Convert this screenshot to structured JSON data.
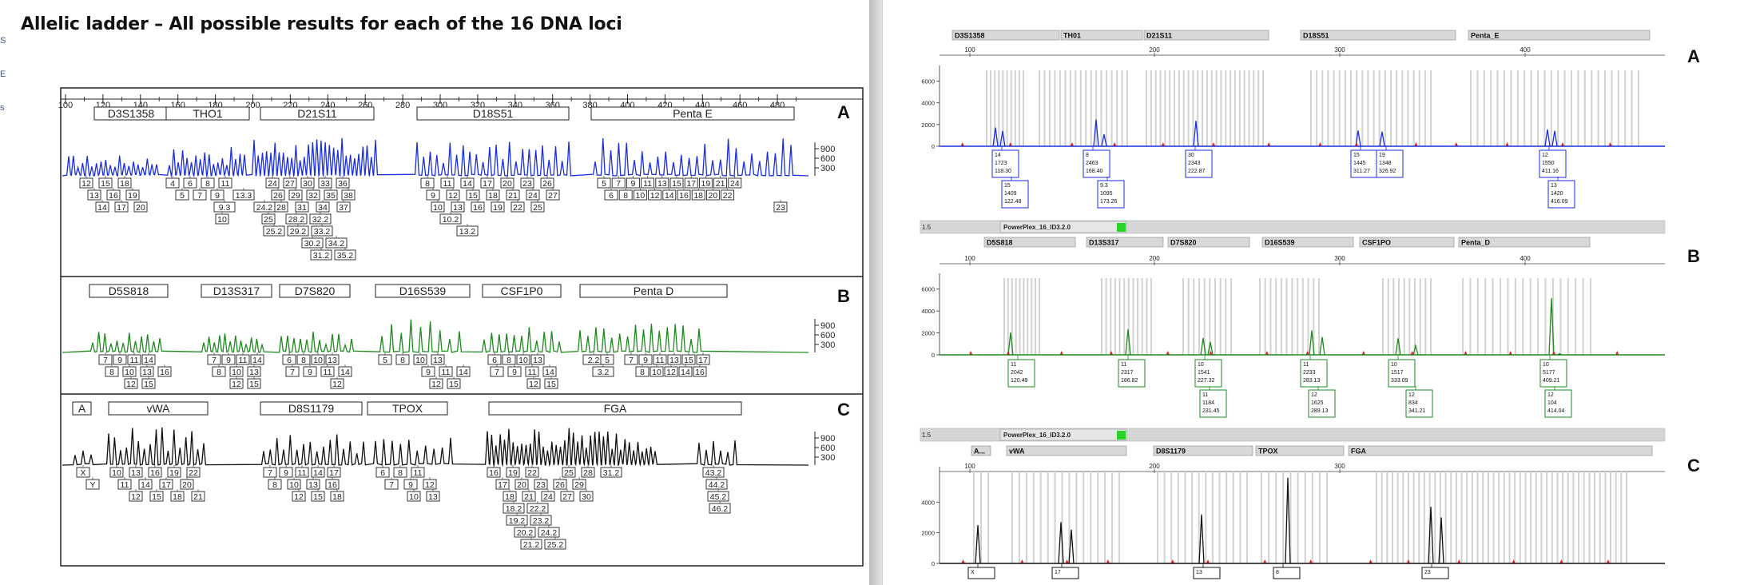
{
  "left_edge_chars": [
    "S",
    "E",
    "s"
  ],
  "title": "Allelic ladder – All possible results for each of the 16 DNA loci",
  "ladder": {
    "bp_ticks": [
      "100",
      "120",
      "140",
      "160",
      "180",
      "200",
      "220",
      "240",
      "260",
      "280",
      "300",
      "320",
      "340",
      "360",
      "380",
      "400",
      "420",
      "440",
      "460",
      "480"
    ],
    "intensity_ticks": [
      "900",
      "600",
      "300"
    ],
    "panels": [
      {
        "letter": "A",
        "color": "#1a2ee0",
        "loci": [
          "D3S1358",
          "THO1",
          "D21S11",
          "D18S51",
          "Penta E"
        ],
        "allele_rows": [
          [
            "12",
            "15",
            "18",
            "4",
            "6",
            "8",
            "11",
            "24",
            "27",
            "30",
            "33",
            "36",
            "8",
            "11",
            "14",
            "17",
            "20",
            "23",
            "26",
            "5",
            "7",
            "9",
            "11",
            "13",
            "15",
            "17",
            "19",
            "21",
            "24"
          ],
          [
            "13",
            "16",
            "19",
            "5",
            "7",
            "9",
            "13.3",
            "26",
            "29",
            "32",
            "35",
            "38",
            "9",
            "12",
            "15",
            "18",
            "21",
            "24",
            "27",
            "6",
            "8",
            "10",
            "12",
            "14",
            "16",
            "18",
            "20",
            "22"
          ],
          [
            "14",
            "17",
            "20",
            "9.3",
            "24.2",
            "28",
            "31",
            "34",
            "37",
            "10",
            "13",
            "16",
            "19",
            "22",
            "25",
            "23"
          ],
          [
            "10",
            "25",
            "28.2",
            "32.2",
            "10.2"
          ],
          [
            "25.2",
            "29.2",
            "33.2",
            "13.2"
          ],
          [
            "30.2",
            "34.2"
          ],
          [
            "31.2",
            "35.2"
          ]
        ]
      },
      {
        "letter": "B",
        "color": "#1e8a1e",
        "loci": [
          "D5S818",
          "D13S317",
          "D7S820",
          "D16S539",
          "CSF1P0",
          "Penta D"
        ],
        "allele_rows": [
          [
            "7",
            "9",
            "11",
            "14",
            "7",
            "9",
            "11",
            "14",
            "6",
            "8",
            "10",
            "13",
            "5",
            "8",
            "10",
            "13",
            "6",
            "8",
            "10",
            "13",
            "2.2",
            "5",
            "7",
            "9",
            "11",
            "13",
            "15",
            "17"
          ],
          [
            "8",
            "10",
            "13",
            "16",
            "8",
            "10",
            "13",
            "7",
            "9",
            "11",
            "14",
            "9",
            "11",
            "14",
            "7",
            "9",
            "11",
            "14",
            "3.2",
            "8",
            "10",
            "12",
            "14",
            "16"
          ],
          [
            "12",
            "15",
            "12",
            "15",
            "12",
            "12",
            "15",
            "12",
            "15"
          ]
        ]
      },
      {
        "letter": "C",
        "color": "#111111",
        "loci": [
          "A",
          "vWA",
          "D8S1179",
          "TPOX",
          "FGA"
        ],
        "allele_rows": [
          [
            "X",
            "10",
            "13",
            "16",
            "19",
            "22",
            "7",
            "9",
            "11",
            "14",
            "17",
            "6",
            "8",
            "11",
            "16",
            "19",
            "22",
            "25",
            "28",
            "31.2",
            "43.2"
          ],
          [
            "Y",
            "11",
            "14",
            "17",
            "20",
            "8",
            "10",
            "13",
            "16",
            "7",
            "9",
            "12",
            "17",
            "20",
            "23",
            "26",
            "29",
            "44.2"
          ],
          [
            "12",
            "15",
            "18",
            "21",
            "12",
            "15",
            "18",
            "10",
            "13",
            "18",
            "21",
            "24",
            "27",
            "30",
            "45.2"
          ],
          [
            "18.2",
            "22.2",
            "46.2"
          ],
          [
            "19.2",
            "23.2"
          ],
          [
            "20.2",
            "24.2"
          ],
          [
            "21.2",
            "25.2"
          ]
        ]
      }
    ]
  },
  "electropherogram": {
    "panels": [
      {
        "letter": "A",
        "color": "#1a2ee0",
        "header_tabs": [
          "D3S1358",
          "TH01",
          "D21S11",
          "D18S51",
          "Penta_E"
        ],
        "bp_ticks": [
          "100",
          "200",
          "300",
          "400"
        ],
        "y_ticks": [
          "6000",
          "4000",
          "2000",
          "0"
        ],
        "peak_labels": [
          {
            "allele": "14",
            "height": "1723",
            "size": "118.30"
          },
          {
            "allele": "15",
            "height": "1409",
            "size": "122.48"
          },
          {
            "allele": "8",
            "height": "2463",
            "size": "168.40"
          },
          {
            "allele": "9.3",
            "height": "1095",
            "size": "173.26"
          },
          {
            "allele": "30",
            "height": "2343",
            "size": "222.87"
          },
          {
            "allele": "15",
            "height": "1445",
            "size": "311.27"
          },
          {
            "allele": "19",
            "height": "1348",
            "size": "326.92"
          },
          {
            "allele": "12",
            "height": "1550",
            "size": "411.16"
          },
          {
            "allele": "13",
            "height": "1420",
            "size": "416.09"
          }
        ]
      },
      {
        "letter": "B",
        "color": "#1e8a1e",
        "top_bar": {
          "value": "1.5",
          "kit": "PowerPlex_16_ID3.2.0"
        },
        "header_tabs": [
          "D5S818",
          "D13S317",
          "D7S820",
          "D16S539",
          "CSF1PO",
          "Penta_D"
        ],
        "bp_ticks": [
          "100",
          "200",
          "300",
          "400"
        ],
        "y_ticks": [
          "6000",
          "4000",
          "2000",
          "0"
        ],
        "peak_labels": [
          {
            "allele": "11",
            "height": "2042",
            "size": "120.49"
          },
          {
            "allele": "11",
            "height": "2317",
            "size": "186.82"
          },
          {
            "allele": "10",
            "height": "1541",
            "size": "227.32"
          },
          {
            "allele": "11",
            "height": "1184",
            "size": "231.45"
          },
          {
            "allele": "11",
            "height": "2233",
            "size": "283.13"
          },
          {
            "allele": "12",
            "height": "1625",
            "size": "289.13"
          },
          {
            "allele": "10",
            "height": "1517",
            "size": "333.09"
          },
          {
            "allele": "12",
            "height": "834",
            "size": "341.21"
          },
          {
            "allele": "10",
            "height": "5177",
            "size": "409.21"
          },
          {
            "allele": "12",
            "height": "104",
            "size": "414.04"
          }
        ]
      },
      {
        "letter": "C",
        "color": "#111111",
        "top_bar": {
          "value": "1.5",
          "kit": "PowerPlex_16_ID3.2.0"
        },
        "header_tabs": [
          "A...",
          "vWA",
          "D8S1179",
          "TPOX",
          "FGA"
        ],
        "bp_ticks": [
          "100",
          "200",
          "300"
        ],
        "y_ticks": [
          "4000",
          "2000",
          "0"
        ],
        "peak_labels": [
          {
            "allele": "X"
          },
          {
            "allele": "17"
          },
          {
            "allele": "13"
          },
          {
            "allele": "8"
          },
          {
            "allele": "23"
          }
        ]
      }
    ]
  }
}
